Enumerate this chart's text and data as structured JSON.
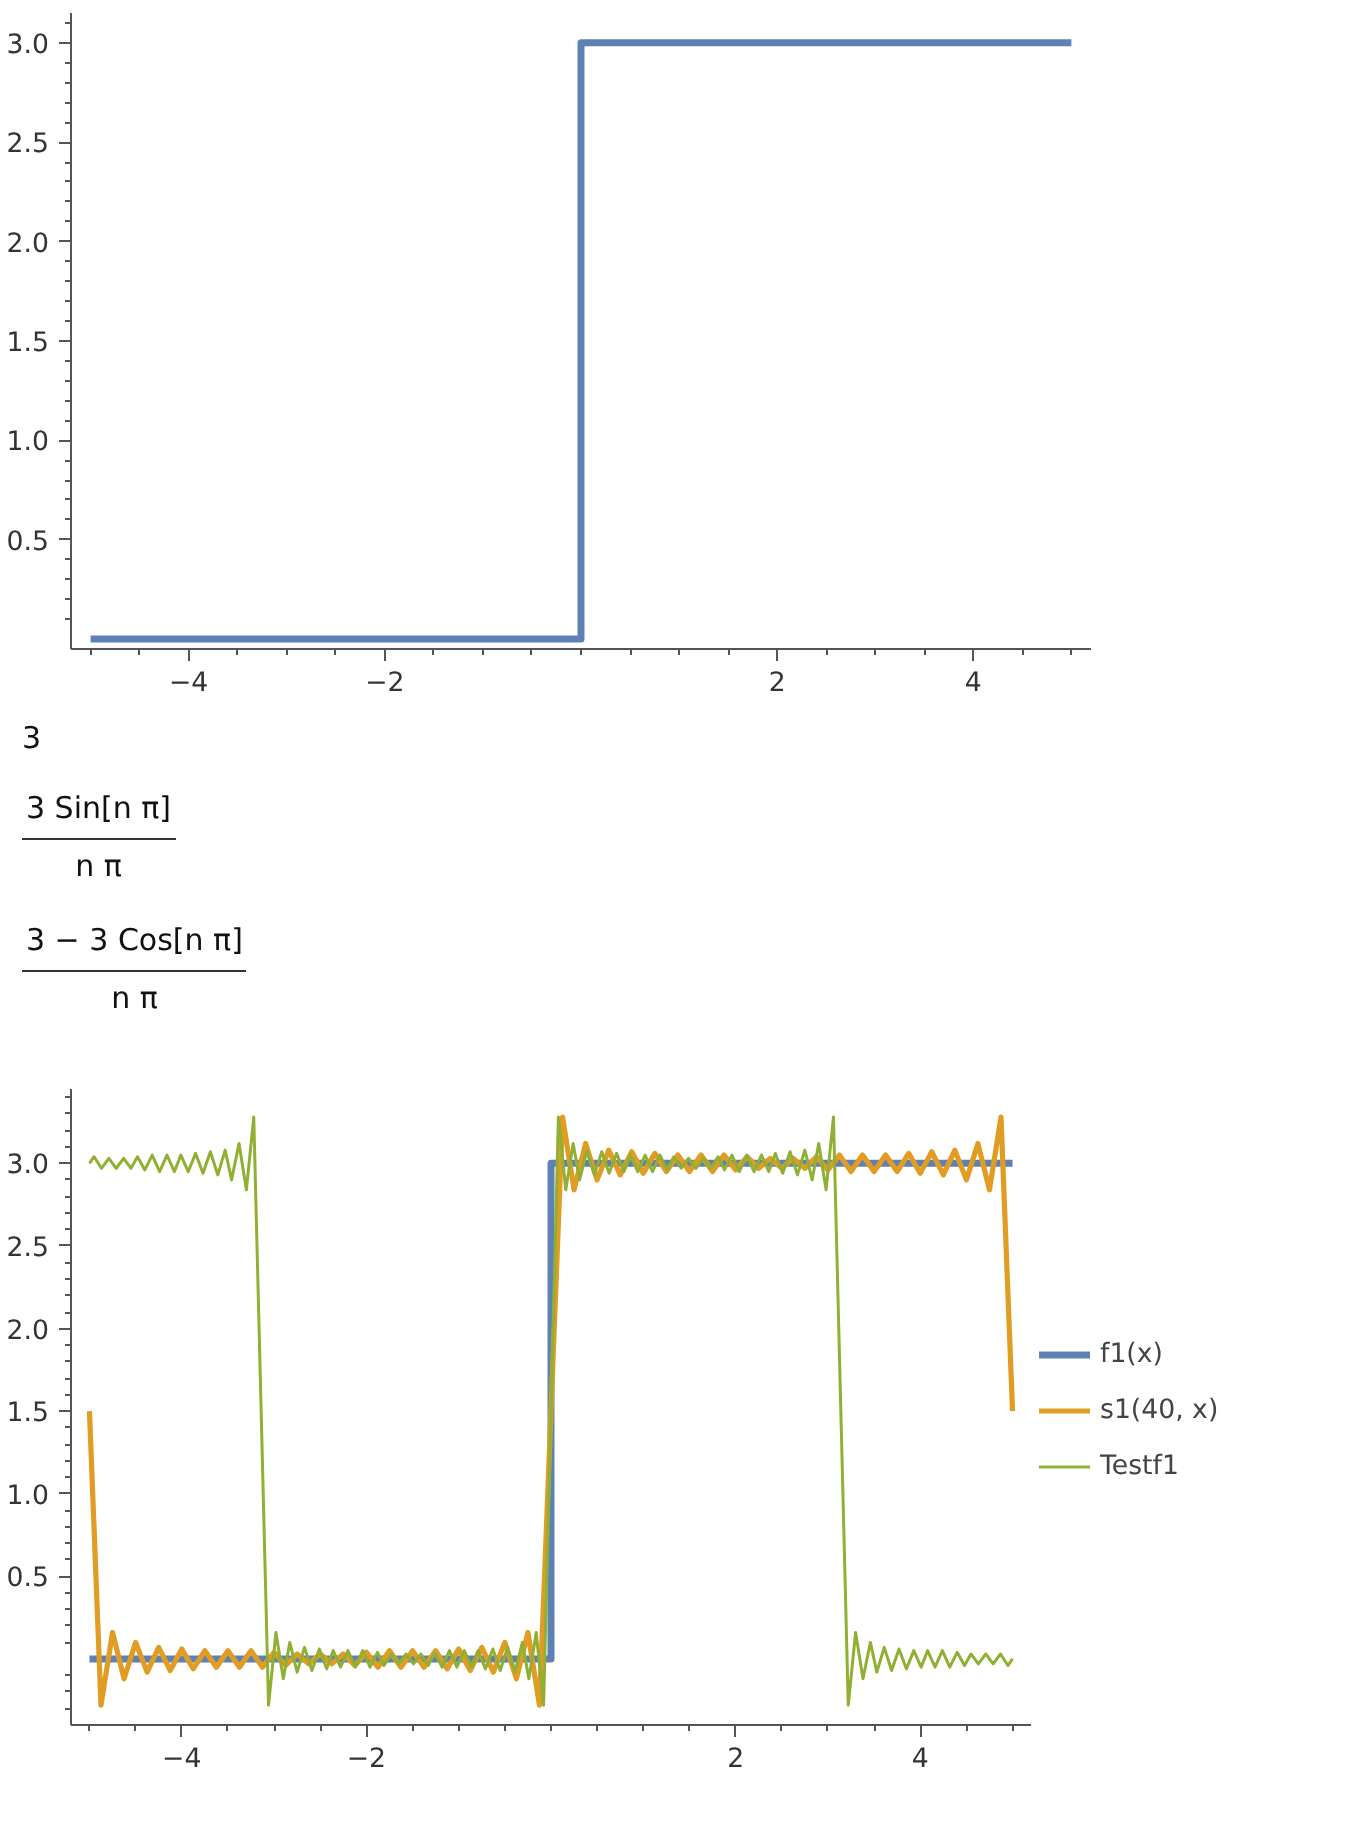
{
  "chart_data": [
    {
      "type": "line",
      "x": [
        -5,
        0,
        0,
        5
      ],
      "series": [
        {
          "color": "#5e81b5",
          "values": [
            0,
            0,
            3,
            3
          ]
        }
      ],
      "xlim": [
        -5.2,
        5.2
      ],
      "ylim": [
        -0.05,
        3.15
      ],
      "xticks": [
        {
          "value": -5,
          "label": null
        },
        {
          "value": -4.5,
          "label": null
        },
        {
          "value": -4,
          "label": "−4"
        },
        {
          "value": -3.5,
          "label": null
        },
        {
          "value": -3,
          "label": null
        },
        {
          "value": -2.5,
          "label": null
        },
        {
          "value": -2,
          "label": "−2"
        },
        {
          "value": -1.5,
          "label": null
        },
        {
          "value": -1,
          "label": null
        },
        {
          "value": -0.5,
          "label": null
        },
        {
          "value": 0,
          "label": null
        },
        {
          "value": 0.5,
          "label": null
        },
        {
          "value": 1,
          "label": null
        },
        {
          "value": 1.5,
          "label": null
        },
        {
          "value": 2,
          "label": "2"
        },
        {
          "value": 2.5,
          "label": null
        },
        {
          "value": 3,
          "label": null
        },
        {
          "value": 3.5,
          "label": null
        },
        {
          "value": 4,
          "label": "4"
        },
        {
          "value": 4.5,
          "label": null
        },
        {
          "value": 5,
          "label": null
        }
      ],
      "yticks": [
        {
          "value": 0.1,
          "label": null
        },
        {
          "value": 0.2,
          "label": null
        },
        {
          "value": 0.3,
          "label": null
        },
        {
          "value": 0.4,
          "label": null
        },
        {
          "value": 0.5,
          "label": "0.5"
        },
        {
          "value": 0.6,
          "label": null
        },
        {
          "value": 0.7,
          "label": null
        },
        {
          "value": 0.8,
          "label": null
        },
        {
          "value": 0.9,
          "label": null
        },
        {
          "value": 1,
          "label": "1.0"
        },
        {
          "value": 1.1,
          "label": null
        },
        {
          "value": 1.2,
          "label": null
        },
        {
          "value": 1.3,
          "label": null
        },
        {
          "value": 1.4,
          "label": null
        },
        {
          "value": 1.5,
          "label": "1.5"
        },
        {
          "value": 1.6,
          "label": null
        },
        {
          "value": 1.7,
          "label": null
        },
        {
          "value": 1.8,
          "label": null
        },
        {
          "value": 1.9,
          "label": null
        },
        {
          "value": 2,
          "label": "2.0"
        },
        {
          "value": 2.1,
          "label": null
        },
        {
          "value": 2.2,
          "label": null
        },
        {
          "value": 2.3,
          "label": null
        },
        {
          "value": 2.4,
          "label": null
        },
        {
          "value": 2.5,
          "label": "2.5"
        },
        {
          "value": 2.6,
          "label": null
        },
        {
          "value": 2.7,
          "label": null
        },
        {
          "value": 2.8,
          "label": null
        },
        {
          "value": 2.9,
          "label": null
        },
        {
          "value": 3,
          "label": "3.0"
        },
        {
          "value": 3.1,
          "label": null
        }
      ]
    },
    {
      "type": "other",
      "annotations": [
        "3",
        "3 Sin[n π]\nn π",
        "3 − 3 Cos[n π]\nn π"
      ]
    },
    {
      "type": "line",
      "legend": "right",
      "series": [
        {
          "name": "f1(x)",
          "color": "#5e81b5",
          "x": [
            -5,
            0,
            0,
            5
          ],
          "values": [
            0,
            0,
            3,
            3
          ]
        },
        {
          "name": "s1(40, x)",
          "color": "#e19c24",
          "x": [
            -5,
            -4.875,
            -4.75,
            -4.625,
            -4.5,
            -4.375,
            -4.25,
            -4.125,
            -4,
            -3.875,
            -3.75,
            -3.625,
            -3.5,
            -3.375,
            -3.25,
            -3.125,
            -3,
            -2.875,
            -2.75,
            -2.625,
            -2.5,
            -2.375,
            -2.25,
            -2.125,
            -2,
            -1.875,
            -1.75,
            -1.625,
            -1.5,
            -1.375,
            -1.25,
            -1.125,
            -1,
            -0.875,
            -0.75,
            -0.625,
            -0.5,
            -0.375,
            -0.25,
            -0.125,
            0,
            0.125,
            0.25,
            0.375,
            0.5,
            0.625,
            0.75,
            0.875,
            1,
            1.125,
            1.25,
            1.375,
            1.5,
            1.625,
            1.75,
            1.875,
            2,
            2.125,
            2.25,
            2.375,
            2.5,
            2.625,
            2.75,
            2.875,
            3,
            3.125,
            3.25,
            3.375,
            3.5,
            3.625,
            3.75,
            3.875,
            4,
            4.125,
            4.25,
            4.375,
            4.5,
            4.625,
            4.75,
            4.875,
            5
          ],
          "values": [
            1.5,
            -0.28,
            0.16,
            -0.12,
            0.1,
            -0.08,
            0.07,
            -0.07,
            0.06,
            -0.06,
            0.05,
            -0.05,
            0.05,
            -0.05,
            0.05,
            -0.05,
            0.04,
            -0.04,
            0.03,
            -0.03,
            0.03,
            -0.03,
            0.03,
            -0.04,
            0.04,
            -0.05,
            0.05,
            -0.05,
            0.05,
            -0.05,
            0.05,
            -0.06,
            0.06,
            -0.07,
            0.07,
            -0.08,
            0.1,
            -0.12,
            0.16,
            -0.28,
            1.5,
            3.28,
            2.84,
            3.12,
            2.9,
            3.08,
            2.93,
            3.07,
            2.94,
            3.06,
            2.95,
            3.05,
            2.95,
            3.05,
            2.95,
            3.05,
            2.96,
            3.04,
            2.97,
            3.03,
            2.97,
            3.03,
            2.97,
            3.04,
            2.96,
            3.05,
            2.95,
            3.05,
            2.95,
            3.05,
            2.95,
            3.06,
            2.94,
            3.07,
            2.93,
            3.08,
            2.9,
            3.12,
            2.84,
            3.28,
            1.5
          ]
        },
        {
          "name": "Testf1",
          "color": "#8fb032",
          "x": [
            -5,
            -4.95,
            -4.87,
            -4.79,
            -4.71,
            -4.63,
            -4.55,
            -4.48,
            -4.4,
            -4.32,
            -4.24,
            -4.16,
            -4.08,
            -4.01,
            -3.93,
            -3.85,
            -3.77,
            -3.69,
            -3.61,
            -3.53,
            -3.46,
            -3.38,
            -3.3,
            -3.22,
            -3.14,
            -3.06,
            -2.98,
            -2.9,
            -2.83,
            -2.75,
            -2.67,
            -2.59,
            -2.51,
            -2.43,
            -2.36,
            -2.28,
            -2.2,
            -2.12,
            -2.04,
            -1.96,
            -1.88,
            -1.81,
            -1.73,
            -1.65,
            -1.57,
            -1.49,
            -1.41,
            -1.33,
            -1.26,
            -1.18,
            -1.1,
            -1.02,
            -0.94,
            -0.86,
            -0.79,
            -0.71,
            -0.63,
            -0.55,
            -0.47,
            -0.39,
            -0.31,
            -0.24,
            -0.16,
            -0.08,
            0,
            0.08,
            0.16,
            0.24,
            0.31,
            0.39,
            0.47,
            0.55,
            0.63,
            0.71,
            0.79,
            0.86,
            0.94,
            1.02,
            1.1,
            1.18,
            1.26,
            1.33,
            1.41,
            1.49,
            1.57,
            1.65,
            1.73,
            1.81,
            1.88,
            1.96,
            2.04,
            2.12,
            2.2,
            2.28,
            2.36,
            2.43,
            2.51,
            2.59,
            2.67,
            2.75,
            2.83,
            2.9,
            2.98,
            3.06,
            3.14,
            3.22,
            3.3,
            3.38,
            3.46,
            3.53,
            3.61,
            3.69,
            3.77,
            3.85,
            3.93,
            4.01,
            4.08,
            4.16,
            4.24,
            4.32,
            4.4,
            4.48,
            4.55,
            4.63,
            4.71,
            4.79,
            4.87,
            4.95,
            5
          ],
          "values": [
            3.0,
            3.04,
            2.97,
            3.03,
            2.97,
            3.03,
            2.97,
            3.04,
            2.96,
            3.05,
            2.95,
            3.05,
            2.95,
            3.05,
            2.95,
            3.06,
            2.94,
            3.07,
            2.93,
            3.08,
            2.9,
            3.12,
            2.84,
            3.28,
            1.5,
            -0.28,
            0.16,
            -0.12,
            0.1,
            -0.08,
            0.07,
            -0.07,
            0.06,
            -0.06,
            0.05,
            -0.05,
            0.05,
            -0.05,
            0.05,
            -0.05,
            0.04,
            -0.04,
            0.03,
            -0.03,
            0.03,
            -0.03,
            0.03,
            -0.04,
            0.04,
            -0.05,
            0.05,
            -0.05,
            0.05,
            -0.05,
            0.05,
            -0.06,
            0.06,
            -0.07,
            0.07,
            -0.08,
            0.1,
            -0.12,
            0.16,
            -0.28,
            1.5,
            3.28,
            2.84,
            3.12,
            2.9,
            3.08,
            2.93,
            3.07,
            2.94,
            3.06,
            2.95,
            3.05,
            2.95,
            3.05,
            2.95,
            3.05,
            2.96,
            3.04,
            2.97,
            3.03,
            2.97,
            3.03,
            2.97,
            3.04,
            2.96,
            3.05,
            2.95,
            3.05,
            2.95,
            3.05,
            2.95,
            3.06,
            2.94,
            3.07,
            2.93,
            3.08,
            2.9,
            3.12,
            2.84,
            3.28,
            1.5,
            -0.28,
            0.16,
            -0.12,
            0.1,
            -0.08,
            0.07,
            -0.07,
            0.06,
            -0.06,
            0.05,
            -0.05,
            0.05,
            -0.05,
            0.05,
            -0.05,
            0.04,
            -0.04,
            0.03,
            -0.03,
            0.03,
            -0.03,
            0.03,
            -0.04,
            0
          ]
        }
      ],
      "xlim": [
        -5.2,
        5.2
      ],
      "ylim": [
        -0.4,
        3.45
      ],
      "xticks": [
        {
          "value": -5,
          "label": null
        },
        {
          "value": -4.5,
          "label": null
        },
        {
          "value": -4,
          "label": "−4"
        },
        {
          "value": -3.5,
          "label": null
        },
        {
          "value": -3,
          "label": null
        },
        {
          "value": -2.5,
          "label": null
        },
        {
          "value": -2,
          "label": "−2"
        },
        {
          "value": -1.5,
          "label": null
        },
        {
          "value": -1,
          "label": null
        },
        {
          "value": -0.5,
          "label": null
        },
        {
          "value": 0,
          "label": null
        },
        {
          "value": 0.5,
          "label": null
        },
        {
          "value": 1,
          "label": null
        },
        {
          "value": 1.5,
          "label": null
        },
        {
          "value": 2,
          "label": "2"
        },
        {
          "value": 2.5,
          "label": null
        },
        {
          "value": 3,
          "label": null
        },
        {
          "value": 3.5,
          "label": null
        },
        {
          "value": 4,
          "label": "4"
        },
        {
          "value": 4.5,
          "label": null
        },
        {
          "value": 5,
          "label": null
        }
      ],
      "yticks": [
        {
          "value": -0.3,
          "label": null
        },
        {
          "value": -0.2,
          "label": null
        },
        {
          "value": -0.1,
          "label": null
        },
        {
          "value": 0.1,
          "label": null
        },
        {
          "value": 0.2,
          "label": null
        },
        {
          "value": 0.3,
          "label": null
        },
        {
          "value": 0.4,
          "label": null
        },
        {
          "value": 0.5,
          "label": "0.5"
        },
        {
          "value": 0.6,
          "label": null
        },
        {
          "value": 0.7,
          "label": null
        },
        {
          "value": 0.8,
          "label": null
        },
        {
          "value": 0.9,
          "label": null
        },
        {
          "value": 1,
          "label": "1.0"
        },
        {
          "value": 1.1,
          "label": null
        },
        {
          "value": 1.2,
          "label": null
        },
        {
          "value": 1.3,
          "label": null
        },
        {
          "value": 1.4,
          "label": null
        },
        {
          "value": 1.5,
          "label": "1.5"
        },
        {
          "value": 1.6,
          "label": null
        },
        {
          "value": 1.7,
          "label": null
        },
        {
          "value": 1.8,
          "label": null
        },
        {
          "value": 1.9,
          "label": null
        },
        {
          "value": 2,
          "label": "2.0"
        },
        {
          "value": 2.1,
          "label": null
        },
        {
          "value": 2.2,
          "label": null
        },
        {
          "value": 2.3,
          "label": null
        },
        {
          "value": 2.4,
          "label": null
        },
        {
          "value": 2.5,
          "label": "2.5"
        },
        {
          "value": 2.6,
          "label": null
        },
        {
          "value": 2.7,
          "label": null
        },
        {
          "value": 2.8,
          "label": null
        },
        {
          "value": 2.9,
          "label": null
        },
        {
          "value": 3,
          "label": "3.0"
        },
        {
          "value": 3.1,
          "label": null
        },
        {
          "value": 3.2,
          "label": null
        },
        {
          "value": 3.3,
          "label": null
        },
        {
          "value": 3.4,
          "label": null
        }
      ]
    }
  ]
}
